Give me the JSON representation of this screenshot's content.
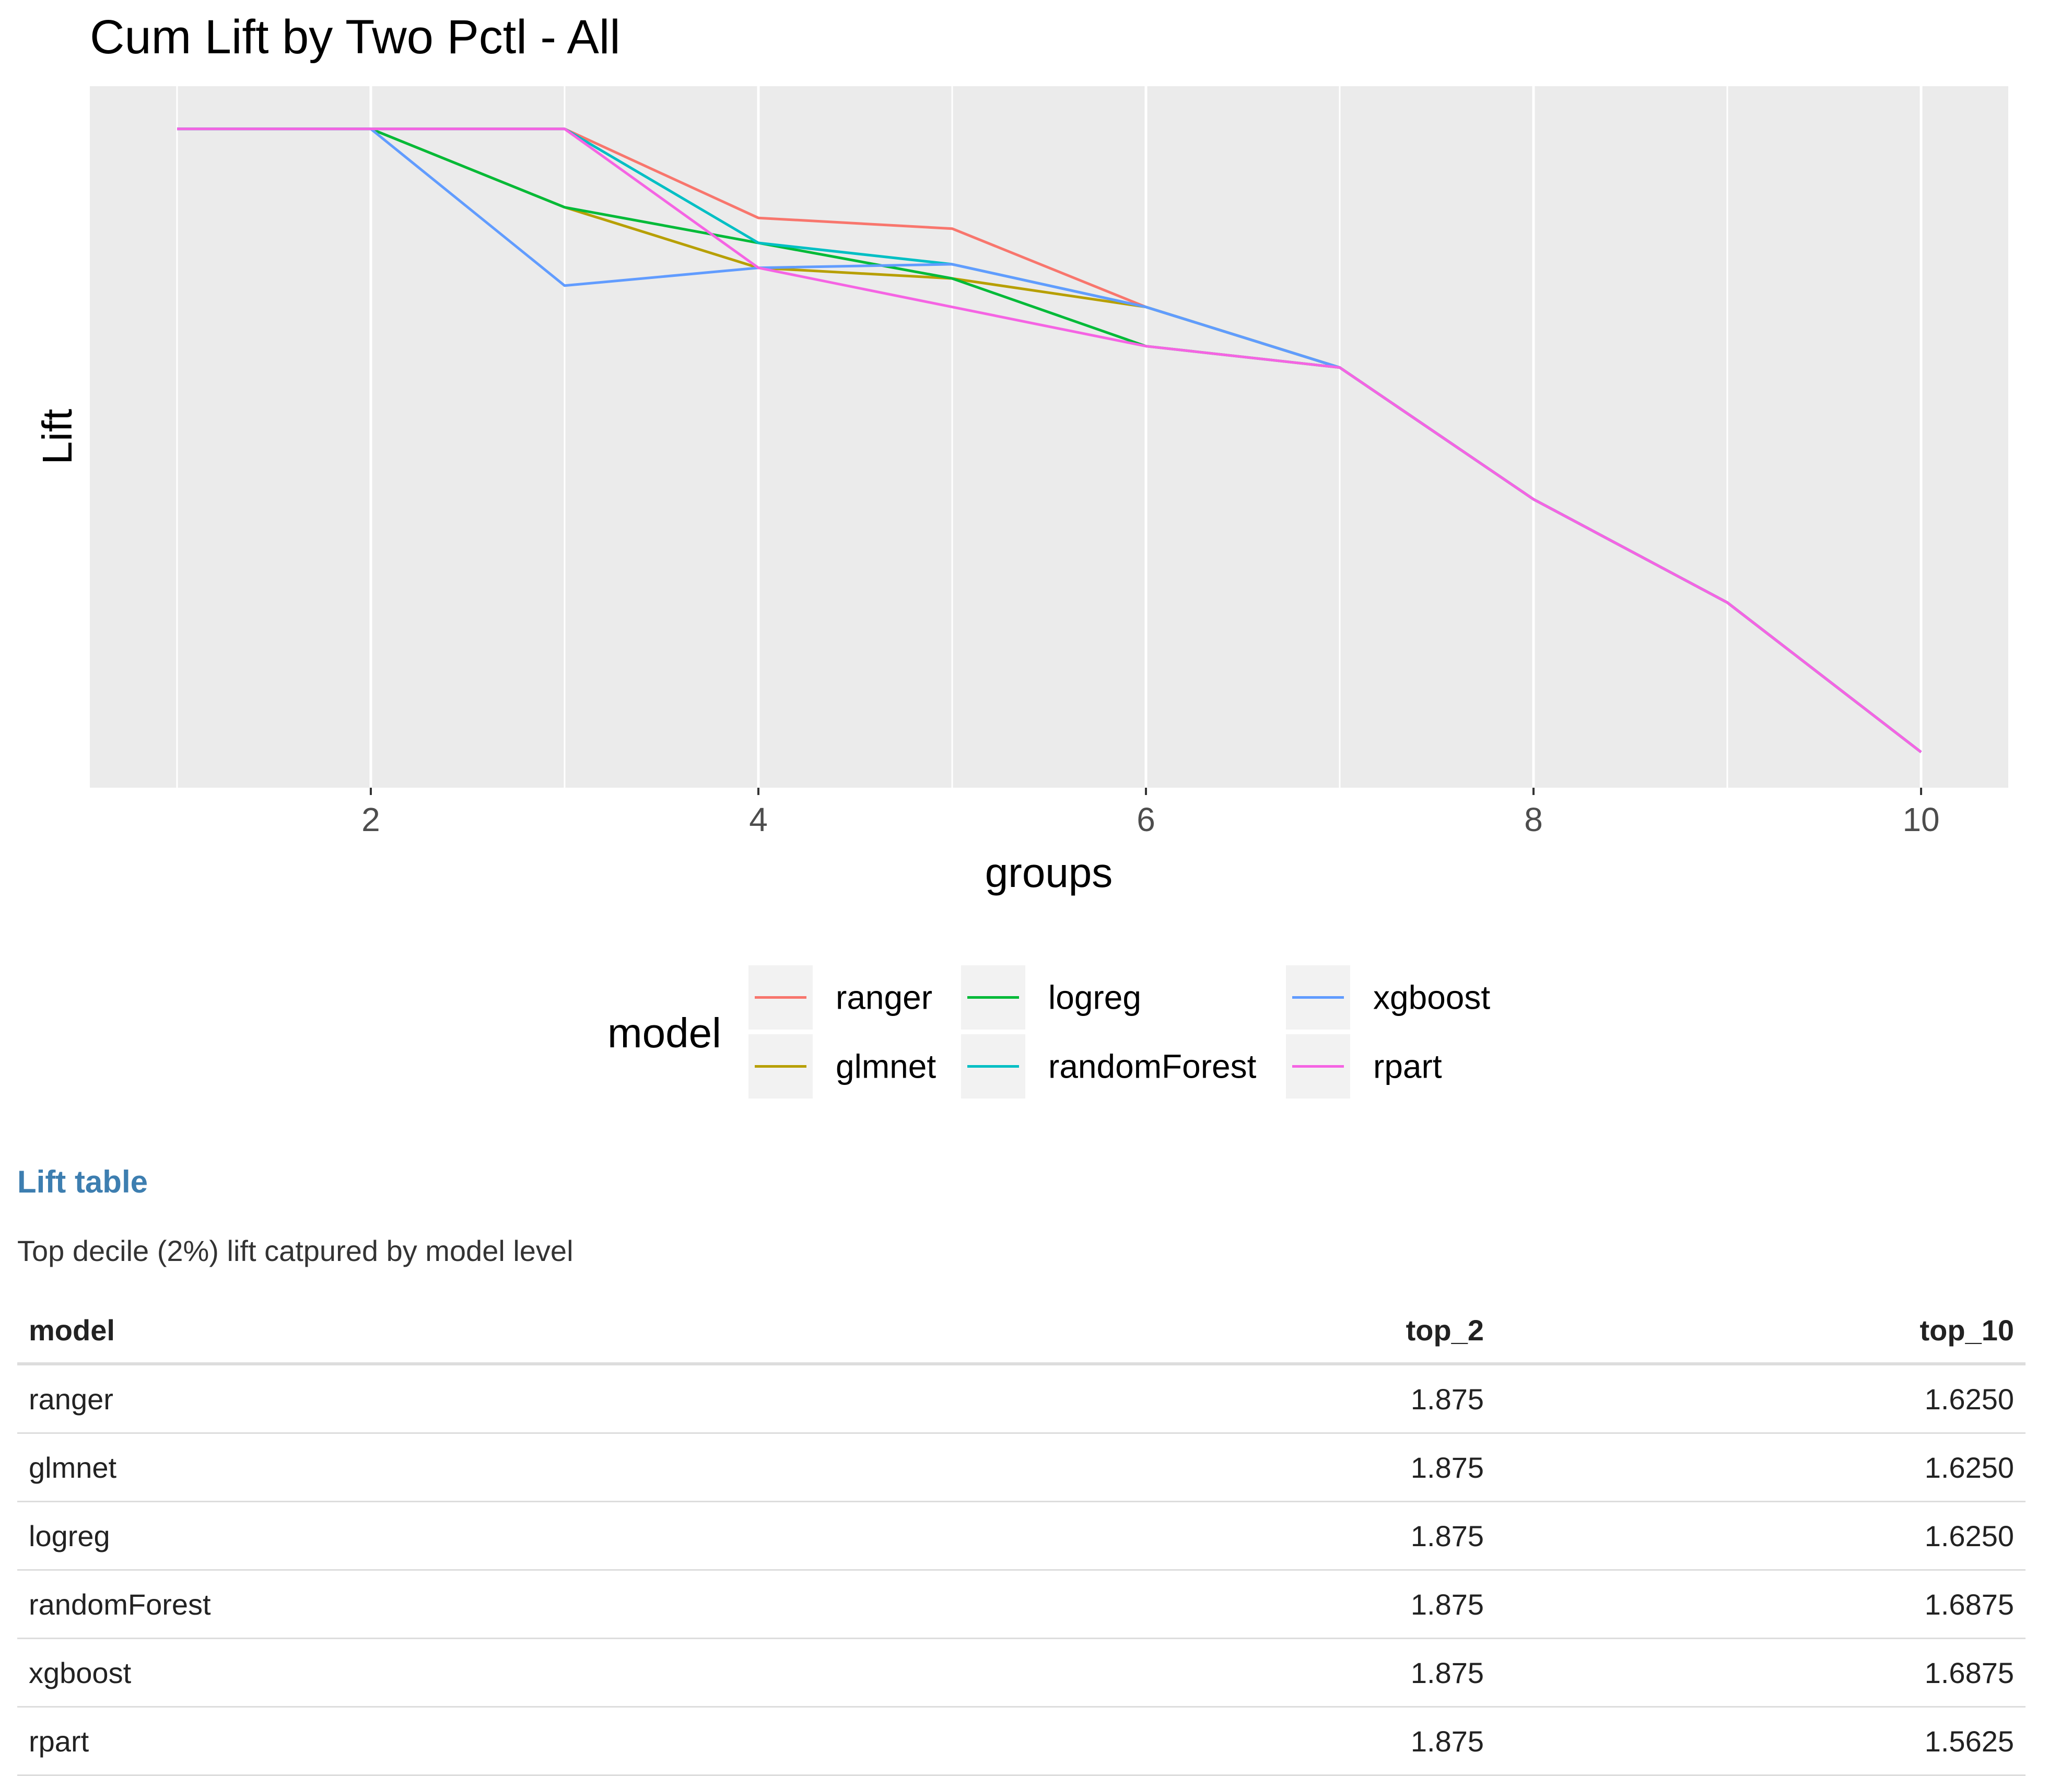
{
  "chart_data": {
    "type": "line",
    "title": "Cum Lift by Two Pctl - All",
    "xlabel": "groups",
    "ylabel": "Lift",
    "x_ticks": [
      2,
      4,
      6,
      8,
      10
    ],
    "xlim": [
      0.55,
      10.45
    ],
    "y_tick_labels_shown": false,
    "ylim": [
      0.95,
      1.935
    ],
    "grid": true,
    "legend": {
      "title": "model",
      "position": "bottom"
    },
    "x": [
      1,
      2,
      3,
      4,
      5,
      6,
      7,
      8,
      9,
      10
    ],
    "series": [
      {
        "name": "ranger",
        "color": "#F8766D",
        "values": [
          1.875,
          1.875,
          1.875,
          1.75,
          1.735,
          1.625,
          1.54,
          1.355,
          1.21,
          1.0
        ]
      },
      {
        "name": "glmnet",
        "color": "#B79F00",
        "values": [
          1.875,
          1.875,
          1.765,
          1.68,
          1.665,
          1.625,
          1.54,
          1.355,
          1.21,
          1.0
        ]
      },
      {
        "name": "logreg",
        "color": "#00BA38",
        "values": [
          1.875,
          1.875,
          1.765,
          1.715,
          1.665,
          1.57,
          1.54,
          1.355,
          1.21,
          1.0
        ]
      },
      {
        "name": "randomForest",
        "color": "#00BFC4",
        "values": [
          1.875,
          1.875,
          1.875,
          1.715,
          1.685,
          1.625,
          1.54,
          1.355,
          1.21,
          1.0
        ]
      },
      {
        "name": "xgboost",
        "color": "#619CFF",
        "values": [
          1.875,
          1.875,
          1.655,
          1.68,
          1.685,
          1.625,
          1.54,
          1.355,
          1.21,
          1.0
        ]
      },
      {
        "name": "rpart",
        "color": "#F564E3",
        "values": [
          1.875,
          1.875,
          1.875,
          1.68,
          1.625,
          1.57,
          1.54,
          1.355,
          1.21,
          1.0
        ]
      }
    ]
  },
  "lift_section": {
    "title": "Lift table",
    "subtitle": "Top decile (2%) lift catpured by model level",
    "columns": [
      "model",
      "top_2",
      "top_10"
    ],
    "rows": [
      [
        "ranger",
        "1.875",
        "1.6250"
      ],
      [
        "glmnet",
        "1.875",
        "1.6250"
      ],
      [
        "logreg",
        "1.875",
        "1.6250"
      ],
      [
        "randomForest",
        "1.875",
        "1.6875"
      ],
      [
        "xgboost",
        "1.875",
        "1.6875"
      ],
      [
        "rpart",
        "1.875",
        "1.5625"
      ]
    ]
  }
}
